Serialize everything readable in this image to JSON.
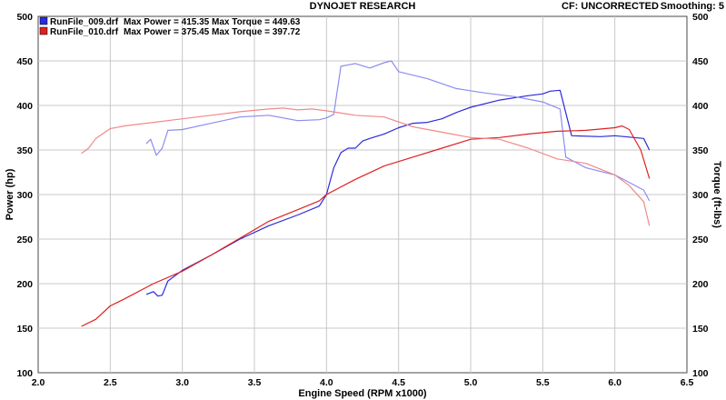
{
  "header": {
    "title": "DYNOJET RESEARCH",
    "correction": "CF: UNCORRECTED",
    "smoothing": "Smoothing: 5"
  },
  "legend": [
    {
      "file": "RunFile_009.drf",
      "max_power": "Max Power = 415.35",
      "max_torque": "Max Torque = 449.63",
      "color": "#2b2bd9"
    },
    {
      "file": "RunFile_010.drf",
      "max_power": "Max Power = 375.45",
      "max_torque": "Max Torque = 397.72",
      "color": "#e02020"
    }
  ],
  "chart_data": {
    "type": "line",
    "title": "DYNOJET RESEARCH",
    "xlabel": "Engine Speed (RPM x1000)",
    "ylabel": "Power (hp)",
    "y2label": "Torque (ft-lbs)",
    "xlim": [
      2.0,
      6.5
    ],
    "ylim": [
      100,
      500
    ],
    "y2lim": [
      100,
      500
    ],
    "x_ticks": [
      "2.0",
      "2.5",
      "3.0",
      "3.5",
      "4.0",
      "4.5",
      "5.0",
      "5.5",
      "6.0",
      "6.5"
    ],
    "y_ticks": [
      "100",
      "150",
      "200",
      "250",
      "300",
      "350",
      "400",
      "450",
      "500"
    ],
    "y2_ticks": [
      "100",
      "150",
      "200",
      "250",
      "300",
      "350",
      "400",
      "450",
      "500"
    ],
    "grid": true,
    "legend_position": "top-left",
    "series": [
      {
        "name": "RunFile_009.drf",
        "measure": "power",
        "color": "#2b2bd9",
        "x": [
          2.75,
          2.8,
          2.83,
          2.86,
          2.9,
          3.0,
          3.2,
          3.4,
          3.6,
          3.8,
          3.95,
          4.0,
          4.05,
          4.1,
          4.15,
          4.2,
          4.25,
          4.3,
          4.4,
          4.5,
          4.6,
          4.7,
          4.8,
          4.9,
          5.0,
          5.2,
          5.4,
          5.5,
          5.55,
          5.62,
          5.7,
          5.9,
          6.0,
          6.2,
          6.24
        ],
        "y": [
          188,
          191,
          186,
          187,
          203,
          215,
          232,
          250,
          265,
          277,
          287,
          300,
          330,
          347,
          352,
          352,
          360,
          363,
          368,
          375,
          380,
          381,
          385,
          392,
          398,
          406,
          411,
          413,
          416,
          417,
          366,
          365,
          366,
          363,
          350
        ]
      },
      {
        "name": "RunFile_009.drf",
        "measure": "torque",
        "color": "#8c8cf0",
        "x": [
          2.75,
          2.78,
          2.82,
          2.86,
          2.9,
          3.0,
          3.2,
          3.4,
          3.6,
          3.8,
          3.95,
          4.0,
          4.05,
          4.1,
          4.2,
          4.3,
          4.4,
          4.45,
          4.5,
          4.7,
          4.9,
          5.1,
          5.3,
          5.5,
          5.62,
          5.66,
          5.8,
          6.0,
          6.2,
          6.24
        ],
        "y": [
          357,
          362,
          344,
          352,
          372,
          373,
          380,
          387,
          389,
          383,
          384,
          386,
          390,
          444,
          447,
          442,
          448,
          450,
          438,
          430,
          419,
          414,
          410,
          404,
          396,
          342,
          330,
          322,
          305,
          293
        ]
      },
      {
        "name": "RunFile_010.drf",
        "measure": "power",
        "color": "#e02020",
        "x": [
          2.3,
          2.4,
          2.5,
          2.6,
          2.8,
          3.0,
          3.2,
          3.4,
          3.6,
          3.8,
          3.95,
          4.0,
          4.2,
          4.4,
          4.6,
          4.8,
          5.0,
          5.2,
          5.4,
          5.6,
          5.8,
          6.0,
          6.05,
          6.1,
          6.18,
          6.24
        ],
        "y": [
          152,
          160,
          175,
          183,
          200,
          214,
          232,
          251,
          270,
          283,
          293,
          300,
          317,
          332,
          342,
          352,
          362,
          364,
          368,
          371,
          372,
          375,
          377,
          373,
          350,
          318
        ]
      },
      {
        "name": "RunFile_010.drf",
        "measure": "torque",
        "color": "#f08a8a",
        "x": [
          2.3,
          2.35,
          2.4,
          2.5,
          2.6,
          2.8,
          3.0,
          3.2,
          3.4,
          3.6,
          3.7,
          3.8,
          3.9,
          4.0,
          4.2,
          4.4,
          4.6,
          4.8,
          5.0,
          5.2,
          5.4,
          5.6,
          5.8,
          6.0,
          6.1,
          6.2,
          6.24
        ],
        "y": [
          346,
          352,
          363,
          374,
          377,
          381,
          385,
          389,
          393,
          396,
          397,
          395,
          396,
          394,
          389,
          387,
          376,
          370,
          364,
          362,
          352,
          340,
          335,
          322,
          310,
          292,
          265
        ]
      }
    ]
  }
}
